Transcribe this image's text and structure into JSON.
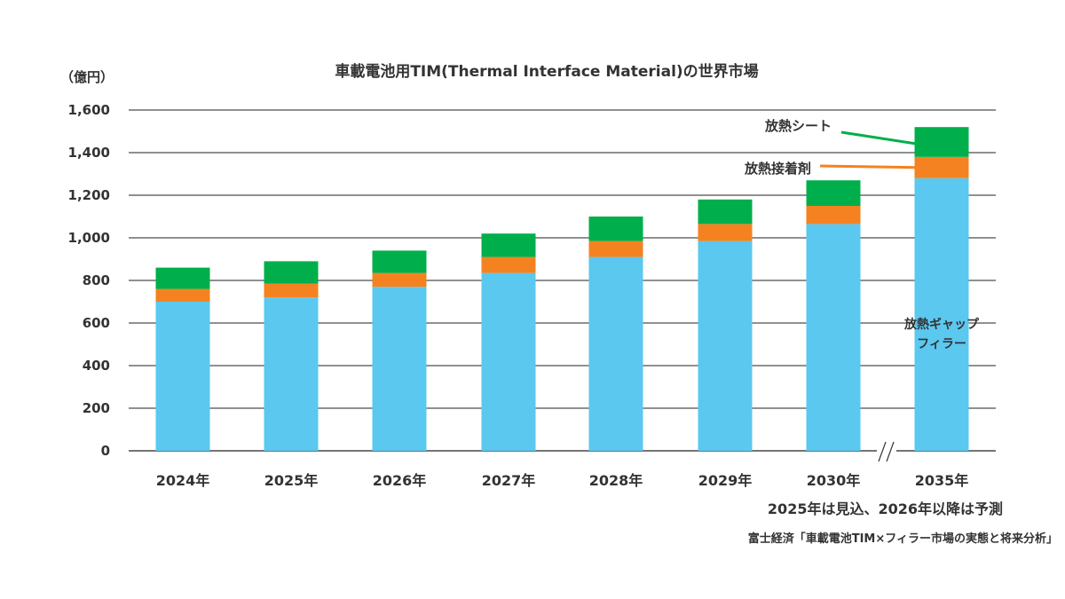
{
  "chart_data": {
    "type": "bar",
    "stacked": true,
    "title": "車載電池用TIM(Thermal Interface Material)の世界市場",
    "unit_label": "（億円）",
    "ylabel": "",
    "xlabel": "",
    "ylim": [
      0,
      1600
    ],
    "yticks": [
      "0",
      "200",
      "400",
      "600",
      "800",
      "1,000",
      "1,200",
      "1,400",
      "1,600"
    ],
    "ytick_values": [
      0,
      200,
      400,
      600,
      800,
      1000,
      1200,
      1400,
      1600
    ],
    "grid": true,
    "axis_break_after_category": "2030年",
    "categories": [
      "2024年",
      "2025年",
      "2026年",
      "2027年",
      "2028年",
      "2029年",
      "2030年",
      "2035年"
    ],
    "series": [
      {
        "name_lines": [
          "放熱ギャップ",
          "フィラー"
        ],
        "color": "#5BC8F0",
        "values": [
          700,
          720,
          770,
          835,
          910,
          985,
          1065,
          1280
        ]
      },
      {
        "name": "放熱接着剤",
        "color": "#F58220",
        "values": [
          60,
          65,
          65,
          75,
          75,
          80,
          85,
          100
        ]
      },
      {
        "name": "放熱シート",
        "color": "#00AF4B",
        "values": [
          100,
          105,
          105,
          110,
          115,
          115,
          120,
          140
        ]
      }
    ],
    "note": "2025年は見込、2026年以降は予測",
    "source": "富士経済「車載電池TIM×フィラー市場の実態と将来分析」"
  }
}
